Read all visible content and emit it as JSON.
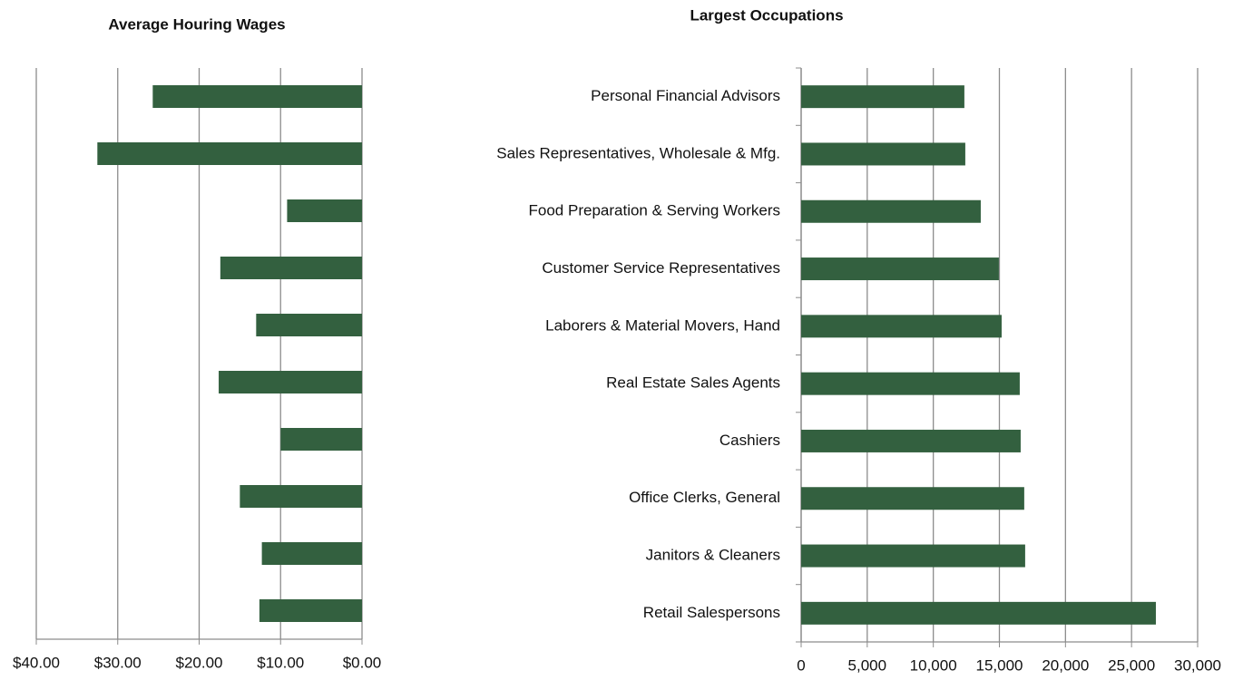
{
  "chart_data": [
    {
      "type": "bar",
      "orientation": "horizontal",
      "title": "Average Houring Wages",
      "values": [
        25.7,
        32.5,
        9.2,
        17.4,
        13.0,
        17.6,
        10.0,
        15.0,
        12.3,
        12.6
      ],
      "color": "#33603f",
      "xlim": [
        40,
        0
      ],
      "xticks": [
        {
          "value": 40,
          "label": "$40.00"
        },
        {
          "value": 30,
          "label": "$30.00"
        },
        {
          "value": 20,
          "label": "$20.00"
        },
        {
          "value": 10,
          "label": "$10.00"
        },
        {
          "value": 0,
          "label": "$0.00"
        }
      ],
      "grid": true
    },
    {
      "type": "bar",
      "orientation": "horizontal",
      "title": "Largest Occupations",
      "categories": [
        "Personal Financial Advisors",
        "Sales Representatives, Wholesale & Mfg.",
        "Food Preparation & Serving Workers",
        "Customer Service Representatives",
        "Laborers & Material Movers, Hand",
        "Real Estate Sales Agents",
        "Cashiers",
        "Office Clerks, General",
        "Janitors & Cleaners",
        "Retail Salespersons"
      ],
      "values": [
        12350,
        12420,
        13590,
        14960,
        15170,
        16540,
        16610,
        16880,
        16950,
        26840
      ],
      "color": "#33603f",
      "xlim": [
        0,
        30000
      ],
      "xticks": [
        0,
        {
          "value": 5000,
          "label": "5,000"
        },
        {
          "value": 10000,
          "label": "10,000"
        },
        {
          "value": 15000,
          "label": "15,000"
        },
        {
          "value": 20000,
          "label": "20,000"
        },
        {
          "value": 25000,
          "label": "25,000"
        },
        {
          "value": 30000,
          "label": "30,000"
        }
      ],
      "grid": true
    }
  ]
}
